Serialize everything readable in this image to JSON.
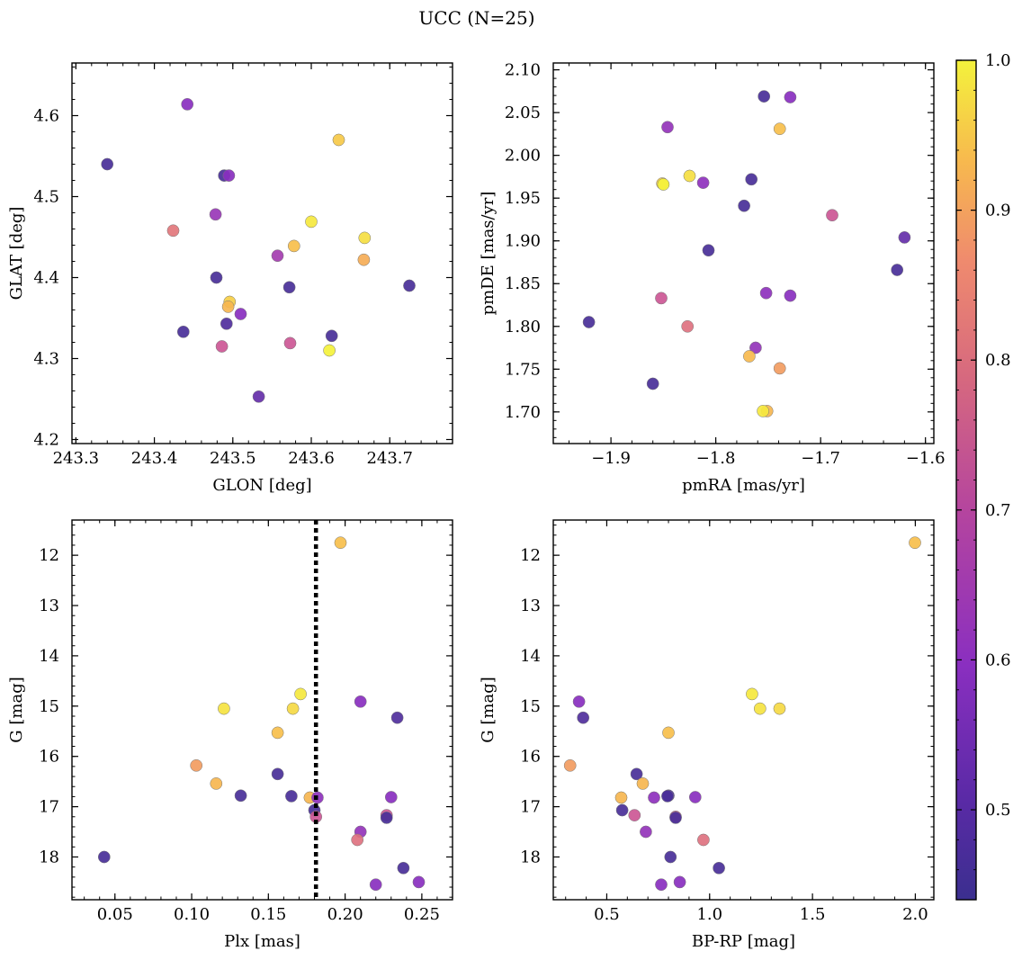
{
  "title": "UCC (N=25)",
  "colorbar": {
    "range": [
      0.44,
      1.0
    ],
    "ticks": [
      0.5,
      0.6,
      0.7,
      0.8,
      0.9,
      1.0
    ],
    "tick_labels": [
      "0.5",
      "0.6",
      "0.7",
      "0.8",
      "0.9",
      "1.0"
    ],
    "colormap": "plasma",
    "colors": [
      "#3b2f8f",
      "#8a2fc0",
      "#c64f9b",
      "#ef8a6e",
      "#f7b94e",
      "#f4f23c"
    ]
  },
  "chart_data": [
    {
      "id": "glon-glat",
      "type": "scatter",
      "xlabel": "GLON [deg]",
      "ylabel": "GLAT [deg]",
      "xlim": [
        243.295,
        243.78
      ],
      "ylim": [
        4.195,
        4.665
      ],
      "xticks": [
        243.3,
        243.4,
        243.5,
        243.6,
        243.7
      ],
      "xtick_labels": [
        "243.3",
        "243.4",
        "243.5",
        "243.6",
        "243.7"
      ],
      "yticks": [
        4.2,
        4.3,
        4.4,
        4.5,
        4.6
      ],
      "ytick_labels": [
        "4.2",
        "4.3",
        "4.4",
        "4.5",
        "4.6"
      ],
      "points": [
        {
          "x": 243.442,
          "y": 4.614,
          "c": 0.55
        },
        {
          "x": 243.34,
          "y": 4.54,
          "c": 0.46
        },
        {
          "x": 243.635,
          "y": 4.57,
          "c": 0.92
        },
        {
          "x": 243.489,
          "y": 4.526,
          "c": 0.46
        },
        {
          "x": 243.495,
          "y": 4.526,
          "c": 0.55
        },
        {
          "x": 243.478,
          "y": 4.478,
          "c": 0.58
        },
        {
          "x": 243.424,
          "y": 4.458,
          "c": 0.74
        },
        {
          "x": 243.6,
          "y": 4.469,
          "c": 0.98
        },
        {
          "x": 243.668,
          "y": 4.449,
          "c": 0.96
        },
        {
          "x": 243.578,
          "y": 4.439,
          "c": 0.9
        },
        {
          "x": 243.557,
          "y": 4.427,
          "c": 0.6
        },
        {
          "x": 243.667,
          "y": 4.422,
          "c": 0.86
        },
        {
          "x": 243.479,
          "y": 4.4,
          "c": 0.46
        },
        {
          "x": 243.572,
          "y": 4.388,
          "c": 0.46
        },
        {
          "x": 243.725,
          "y": 4.39,
          "c": 0.46
        },
        {
          "x": 243.496,
          "y": 4.37,
          "c": 0.93
        },
        {
          "x": 243.494,
          "y": 4.364,
          "c": 0.88
        },
        {
          "x": 243.51,
          "y": 4.355,
          "c": 0.55
        },
        {
          "x": 243.492,
          "y": 4.343,
          "c": 0.47
        },
        {
          "x": 243.437,
          "y": 4.333,
          "c": 0.46
        },
        {
          "x": 243.626,
          "y": 4.328,
          "c": 0.46
        },
        {
          "x": 243.486,
          "y": 4.315,
          "c": 0.68
        },
        {
          "x": 243.573,
          "y": 4.319,
          "c": 0.68
        },
        {
          "x": 243.623,
          "y": 4.31,
          "c": 1.0
        },
        {
          "x": 243.533,
          "y": 4.253,
          "c": 0.5
        }
      ]
    },
    {
      "id": "pmra-pmde",
      "type": "scatter",
      "xlabel": "pmRA [mas/yr]",
      "ylabel": "pmDE [mas/yr]",
      "xlim": [
        -1.955,
        -1.592
      ],
      "ylim": [
        1.663,
        2.108
      ],
      "xticks": [
        -1.9,
        -1.8,
        -1.7,
        -1.6
      ],
      "xtick_labels": [
        "−1.9",
        "−1.8",
        "−1.7",
        "−1.6"
      ],
      "yticks": [
        1.7,
        1.75,
        1.8,
        1.85,
        1.9,
        1.95,
        2.0,
        2.05,
        2.1
      ],
      "ytick_labels": [
        "1.70",
        "1.75",
        "1.80",
        "1.85",
        "1.90",
        "1.95",
        "2.00",
        "2.05",
        "2.10"
      ],
      "points": [
        {
          "x": -1.754,
          "y": 2.069,
          "c": 0.46
        },
        {
          "x": -1.729,
          "y": 2.068,
          "c": 0.55
        },
        {
          "x": -1.846,
          "y": 2.033,
          "c": 0.57
        },
        {
          "x": -1.739,
          "y": 2.031,
          "c": 0.9
        },
        {
          "x": -1.825,
          "y": 1.976,
          "c": 0.96
        },
        {
          "x": -1.851,
          "y": 1.967,
          "c": 0.93
        },
        {
          "x": -1.85,
          "y": 1.966,
          "c": 1.0
        },
        {
          "x": -1.812,
          "y": 1.968,
          "c": 0.56
        },
        {
          "x": -1.766,
          "y": 1.972,
          "c": 0.46
        },
        {
          "x": -1.773,
          "y": 1.941,
          "c": 0.46
        },
        {
          "x": -1.689,
          "y": 1.93,
          "c": 0.68
        },
        {
          "x": -1.62,
          "y": 1.904,
          "c": 0.5
        },
        {
          "x": -1.807,
          "y": 1.889,
          "c": 0.46
        },
        {
          "x": -1.627,
          "y": 1.866,
          "c": 0.46
        },
        {
          "x": -1.752,
          "y": 1.839,
          "c": 0.56
        },
        {
          "x": -1.729,
          "y": 1.836,
          "c": 0.55
        },
        {
          "x": -1.852,
          "y": 1.833,
          "c": 0.68
        },
        {
          "x": -1.921,
          "y": 1.805,
          "c": 0.46
        },
        {
          "x": -1.827,
          "y": 1.8,
          "c": 0.73
        },
        {
          "x": -1.762,
          "y": 1.775,
          "c": 0.57
        },
        {
          "x": -1.768,
          "y": 1.765,
          "c": 0.89
        },
        {
          "x": -1.739,
          "y": 1.751,
          "c": 0.82
        },
        {
          "x": -1.86,
          "y": 1.733,
          "c": 0.46
        },
        {
          "x": -1.751,
          "y": 1.701,
          "c": 0.88
        },
        {
          "x": -1.755,
          "y": 1.701,
          "c": 0.98
        }
      ]
    },
    {
      "id": "plx-g",
      "type": "scatter",
      "xlabel": "Plx [mas]",
      "ylabel": "G [mag]",
      "xlim": [
        0.022,
        0.27
      ],
      "ylim": [
        11.3,
        18.85
      ],
      "y_inverted": true,
      "xticks": [
        0.05,
        0.1,
        0.15,
        0.2,
        0.25
      ],
      "xtick_labels": [
        "0.05",
        "0.10",
        "0.15",
        "0.20",
        "0.25"
      ],
      "yticks": [
        12,
        13,
        14,
        15,
        16,
        17,
        18
      ],
      "ytick_labels": [
        "12",
        "13",
        "14",
        "15",
        "16",
        "17",
        "18"
      ],
      "vline": 0.181,
      "points": [
        {
          "x": 0.197,
          "y": 11.75,
          "c": 0.9
        },
        {
          "x": 0.171,
          "y": 14.76,
          "c": 0.98
        },
        {
          "x": 0.21,
          "y": 14.91,
          "c": 0.55
        },
        {
          "x": 0.121,
          "y": 15.05,
          "c": 0.97
        },
        {
          "x": 0.166,
          "y": 15.05,
          "c": 0.95
        },
        {
          "x": 0.234,
          "y": 15.23,
          "c": 0.47
        },
        {
          "x": 0.156,
          "y": 15.53,
          "c": 0.9
        },
        {
          "x": 0.103,
          "y": 16.18,
          "c": 0.82
        },
        {
          "x": 0.156,
          "y": 16.35,
          "c": 0.46
        },
        {
          "x": 0.116,
          "y": 16.54,
          "c": 0.88
        },
        {
          "x": 0.132,
          "y": 16.78,
          "c": 0.46
        },
        {
          "x": 0.165,
          "y": 16.79,
          "c": 0.46
        },
        {
          "x": 0.177,
          "y": 16.82,
          "c": 0.88
        },
        {
          "x": 0.182,
          "y": 16.82,
          "c": 0.56
        },
        {
          "x": 0.23,
          "y": 16.81,
          "c": 0.55
        },
        {
          "x": 0.18,
          "y": 17.07,
          "c": 0.46
        },
        {
          "x": 0.181,
          "y": 17.2,
          "c": 0.68
        },
        {
          "x": 0.227,
          "y": 17.17,
          "c": 0.68
        },
        {
          "x": 0.227,
          "y": 17.22,
          "c": 0.46
        },
        {
          "x": 0.21,
          "y": 17.5,
          "c": 0.57
        },
        {
          "x": 0.208,
          "y": 17.66,
          "c": 0.73
        },
        {
          "x": 0.043,
          "y": 18.0,
          "c": 0.46
        },
        {
          "x": 0.238,
          "y": 18.22,
          "c": 0.46
        },
        {
          "x": 0.22,
          "y": 18.55,
          "c": 0.55
        },
        {
          "x": 0.248,
          "y": 18.5,
          "c": 0.55
        }
      ]
    },
    {
      "id": "bprp-g",
      "type": "scatter",
      "xlabel": "BP-RP [mag]",
      "ylabel": "G [mag]",
      "xlim": [
        0.24,
        2.09
      ],
      "ylim": [
        11.3,
        18.85
      ],
      "y_inverted": true,
      "xticks": [
        0.5,
        1.0,
        1.5,
        2.0
      ],
      "xtick_labels": [
        "0.5",
        "1.0",
        "1.5",
        "2.0"
      ],
      "yticks": [
        12,
        13,
        14,
        15,
        16,
        17,
        18
      ],
      "ytick_labels": [
        "12",
        "13",
        "14",
        "15",
        "16",
        "17",
        "18"
      ],
      "points": [
        {
          "x": 1.998,
          "y": 11.75,
          "c": 0.9
        },
        {
          "x": 1.206,
          "y": 14.76,
          "c": 0.98
        },
        {
          "x": 0.365,
          "y": 14.91,
          "c": 0.55
        },
        {
          "x": 1.245,
          "y": 15.05,
          "c": 0.97
        },
        {
          "x": 1.34,
          "y": 15.05,
          "c": 0.95
        },
        {
          "x": 0.385,
          "y": 15.23,
          "c": 0.47
        },
        {
          "x": 0.8,
          "y": 15.53,
          "c": 0.9
        },
        {
          "x": 0.322,
          "y": 16.18,
          "c": 0.82
        },
        {
          "x": 0.645,
          "y": 16.35,
          "c": 0.46
        },
        {
          "x": 0.675,
          "y": 16.54,
          "c": 0.88
        },
        {
          "x": 0.8,
          "y": 16.78,
          "c": 0.46
        },
        {
          "x": 0.795,
          "y": 16.79,
          "c": 0.46
        },
        {
          "x": 0.57,
          "y": 16.82,
          "c": 0.88
        },
        {
          "x": 0.73,
          "y": 16.82,
          "c": 0.56
        },
        {
          "x": 0.93,
          "y": 16.81,
          "c": 0.55
        },
        {
          "x": 0.575,
          "y": 17.07,
          "c": 0.46
        },
        {
          "x": 0.635,
          "y": 17.17,
          "c": 0.68
        },
        {
          "x": 0.835,
          "y": 17.2,
          "c": 0.68
        },
        {
          "x": 0.835,
          "y": 17.22,
          "c": 0.46
        },
        {
          "x": 0.69,
          "y": 17.5,
          "c": 0.57
        },
        {
          "x": 0.97,
          "y": 17.66,
          "c": 0.73
        },
        {
          "x": 0.81,
          "y": 18.0,
          "c": 0.46
        },
        {
          "x": 1.045,
          "y": 18.22,
          "c": 0.46
        },
        {
          "x": 0.765,
          "y": 18.55,
          "c": 0.55
        },
        {
          "x": 0.855,
          "y": 18.5,
          "c": 0.55
        }
      ]
    }
  ]
}
